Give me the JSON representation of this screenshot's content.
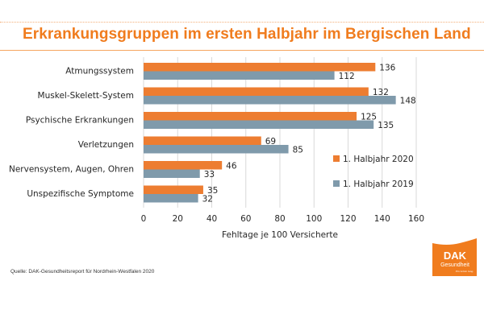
{
  "header": {
    "title": "Erkrankungsgruppen im ersten Halbjahr im Bergischen Land"
  },
  "chart_data": {
    "type": "bar",
    "orientation": "horizontal",
    "title": "Erkrankungsgruppen im ersten Halbjahr im Bergischen Land",
    "xlabel": "Fehltage je 100 Versicherte",
    "ylabel": "",
    "categories": [
      "Atmungssystem",
      "Muskel-Skelett-System",
      "Psychische Erkrankungen",
      "Verletzungen",
      "Nervensystem, Augen, Ohren",
      "Unspezifische Symptome"
    ],
    "series": [
      {
        "name": "1. Halbjahr 2020",
        "color": "#ed7d31",
        "values": [
          136,
          132,
          125,
          69,
          46,
          35
        ]
      },
      {
        "name": "1. Halbjahr 2019",
        "color": "#7f9aab",
        "values": [
          112,
          148,
          135,
          85,
          33,
          32
        ]
      }
    ],
    "xlim": [
      0,
      160
    ],
    "xticks": [
      0,
      20,
      40,
      60,
      80,
      100,
      120,
      140,
      160
    ],
    "grid": "vertical",
    "legend_position": "right"
  },
  "footer": {
    "source": "Quelle: DAK-Gesundheitsreport für Nordrhein-Westfalen 2020"
  },
  "logo": {
    "brand": "DAK",
    "subtitle": "Gesundheit",
    "tagline": "Ein Leben lang.",
    "color": "#f07c1e"
  }
}
